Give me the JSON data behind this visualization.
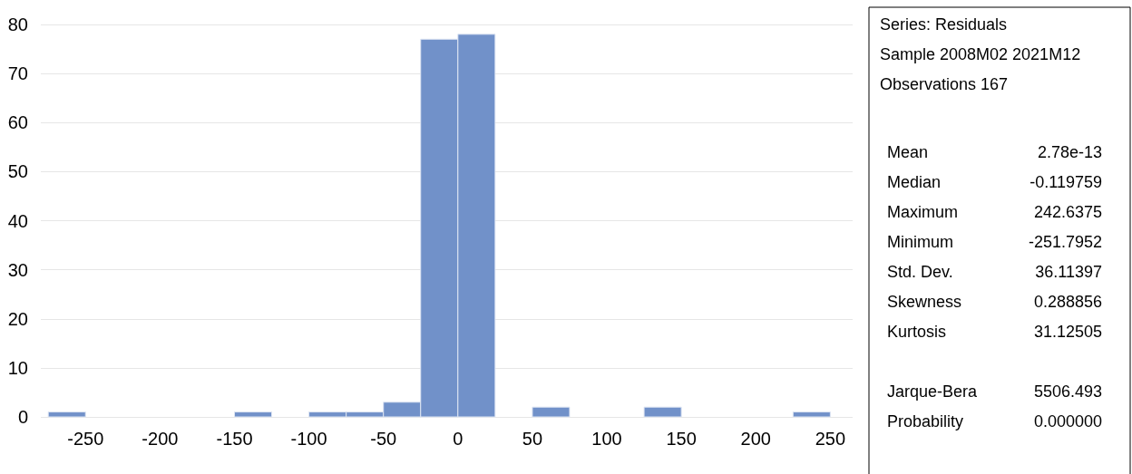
{
  "chart_data": {
    "type": "histogram",
    "bins": [
      -275,
      -250,
      -225,
      -200,
      -175,
      -150,
      -125,
      -100,
      -75,
      -50,
      -25,
      0,
      25,
      50,
      75,
      100,
      125,
      150,
      175,
      200,
      225,
      250
    ],
    "values": [
      1,
      0,
      0,
      0,
      0,
      1,
      0,
      1,
      1,
      3,
      77,
      78,
      0,
      2,
      0,
      0,
      2,
      0,
      0,
      0,
      1
    ],
    "color": "#7191c9",
    "xlim": [
      -280,
      265
    ],
    "xticks": [
      -250,
      -200,
      -150,
      -100,
      -50,
      0,
      50,
      100,
      150,
      200,
      250
    ],
    "ylim": [
      0,
      80
    ],
    "yticks": [
      0,
      10,
      20,
      30,
      40,
      50,
      60,
      70,
      80
    ],
    "grid": "y",
    "annotations": [
      "Series: Residuals",
      "Sample 2008M02 2021M12",
      "Observations 167",
      "Mean 2.78e-13",
      "Median -0.119759",
      "Maximum 242.6375",
      "Minimum -251.7952",
      "Std. Dev. 36.11397",
      "Skewness 0.288856",
      "Kurtosis 31.12505",
      "Jarque-Bera 5506.493",
      "Probability 0.000000"
    ]
  }
}
